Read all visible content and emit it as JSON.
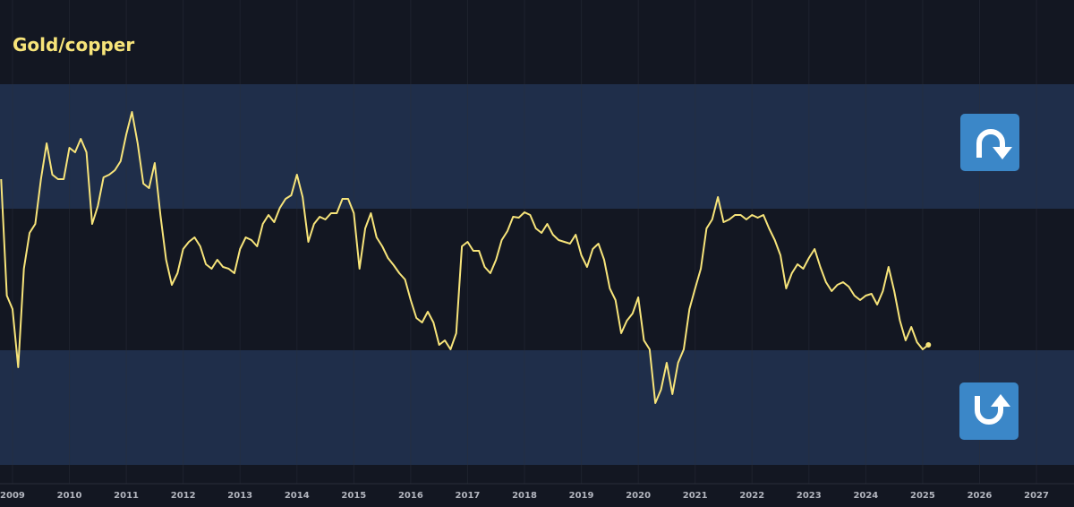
{
  "chart_data": {
    "type": "line",
    "title": "Gold/copper",
    "xlim": [
      2008.78,
      2027.66
    ],
    "xticks": [
      2009,
      2010,
      2011,
      2012,
      2013,
      2014,
      2015,
      2016,
      2017,
      2018,
      2019,
      2020,
      2021,
      2022,
      2023,
      2024,
      2025,
      2026,
      2027
    ],
    "ylim": [
      0,
      540
    ],
    "grid": true,
    "bands": [
      {
        "range": [
          307,
          446
        ],
        "color": "#1f2e4a"
      },
      {
        "range": [
          21,
          149
        ],
        "color": "#1f2e4a"
      }
    ],
    "x": [
      2008.8,
      2008.9,
      2009,
      2009.1,
      2009.2,
      2009.3,
      2009.4,
      2009.5,
      2009.6,
      2009.7,
      2009.8,
      2009.9,
      2010,
      2010.1,
      2010.2,
      2010.3,
      2010.4,
      2010.5,
      2010.6,
      2010.7,
      2010.8,
      2010.9,
      2011,
      2011.1,
      2011.2,
      2011.3,
      2011.4,
      2011.5,
      2011.6,
      2011.7,
      2011.8,
      2011.9,
      2012,
      2012.1,
      2012.2,
      2012.3,
      2012.4,
      2012.5,
      2012.6,
      2012.7,
      2012.8,
      2012.9,
      2013,
      2013.1,
      2013.2,
      2013.3,
      2013.4,
      2013.5,
      2013.6,
      2013.7,
      2013.8,
      2013.9,
      2014,
      2014.1,
      2014.2,
      2014.3,
      2014.4,
      2014.5,
      2014.6,
      2014.7,
      2014.8,
      2014.9,
      2015,
      2015.1,
      2015.2,
      2015.3,
      2015.4,
      2015.5,
      2015.6,
      2015.7,
      2015.8,
      2015.9,
      2016,
      2016.1,
      2016.2,
      2016.3,
      2016.4,
      2016.5,
      2016.6,
      2016.7,
      2016.8,
      2016.9,
      2017,
      2017.1,
      2017.2,
      2017.3,
      2017.4,
      2017.5,
      2017.6,
      2017.7,
      2017.8,
      2017.9,
      2018,
      2018.1,
      2018.2,
      2018.3,
      2018.4,
      2018.5,
      2018.6,
      2018.7,
      2018.8,
      2018.9,
      2019,
      2019.1,
      2019.2,
      2019.3,
      2019.4,
      2019.5,
      2019.6,
      2019.7,
      2019.8,
      2019.9,
      2020,
      2020.1,
      2020.2,
      2020.3,
      2020.4,
      2020.5,
      2020.6,
      2020.7,
      2020.8,
      2020.9,
      2021,
      2021.1,
      2021.2,
      2021.3,
      2021.4,
      2021.5,
      2021.6,
      2021.7,
      2021.8,
      2021.9,
      2022,
      2022.1,
      2022.2,
      2022.3,
      2022.4,
      2022.5,
      2022.6,
      2022.7,
      2022.8,
      2022.9,
      2023,
      2023.1,
      2023.2,
      2023.3,
      2023.4,
      2023.5,
      2023.6,
      2023.7,
      2023.8,
      2023.9,
      2024,
      2024.1,
      2024.2,
      2024.3,
      2024.4,
      2024.5,
      2024.6,
      2024.7,
      2024.8,
      2024.9,
      2025,
      2025.1
    ],
    "series": [
      {
        "color": "#f7e47a",
        "values": [
          340,
          210,
          195,
          130,
          240,
          280,
          290,
          340,
          380,
          345,
          340,
          340,
          375,
          370,
          385,
          370,
          290,
          310,
          342,
          345,
          350,
          360,
          390,
          415,
          380,
          335,
          330,
          358,
          300,
          250,
          222,
          235,
          262,
          270,
          275,
          265,
          245,
          240,
          250,
          242,
          240,
          235,
          262,
          275,
          272,
          265,
          290,
          300,
          292,
          308,
          318,
          322,
          345,
          320,
          270,
          290,
          298,
          295,
          302,
          302,
          318,
          318,
          302,
          240,
          285,
          302,
          275,
          265,
          252,
          244,
          235,
          228,
          205,
          185,
          180,
          192,
          180,
          155,
          160,
          150,
          168,
          265,
          270,
          260,
          260,
          242,
          235,
          250,
          272,
          282,
          298,
          297,
          303,
          300,
          285,
          280,
          290,
          278,
          272,
          270,
          268,
          278,
          255,
          242,
          262,
          268,
          250,
          218,
          205,
          168,
          182,
          190,
          208,
          160,
          150,
          90,
          105,
          135,
          100,
          135,
          150,
          195,
          218,
          240,
          285,
          295,
          320,
          292,
          295,
          300,
          300,
          295,
          300,
          297,
          300,
          285,
          272,
          255,
          218,
          235,
          245,
          240,
          252,
          262,
          242,
          225,
          215,
          222,
          225,
          220,
          210,
          205,
          210,
          212,
          200,
          215,
          242,
          215,
          182,
          160,
          175,
          158,
          150,
          155
        ]
      }
    ]
  }
}
